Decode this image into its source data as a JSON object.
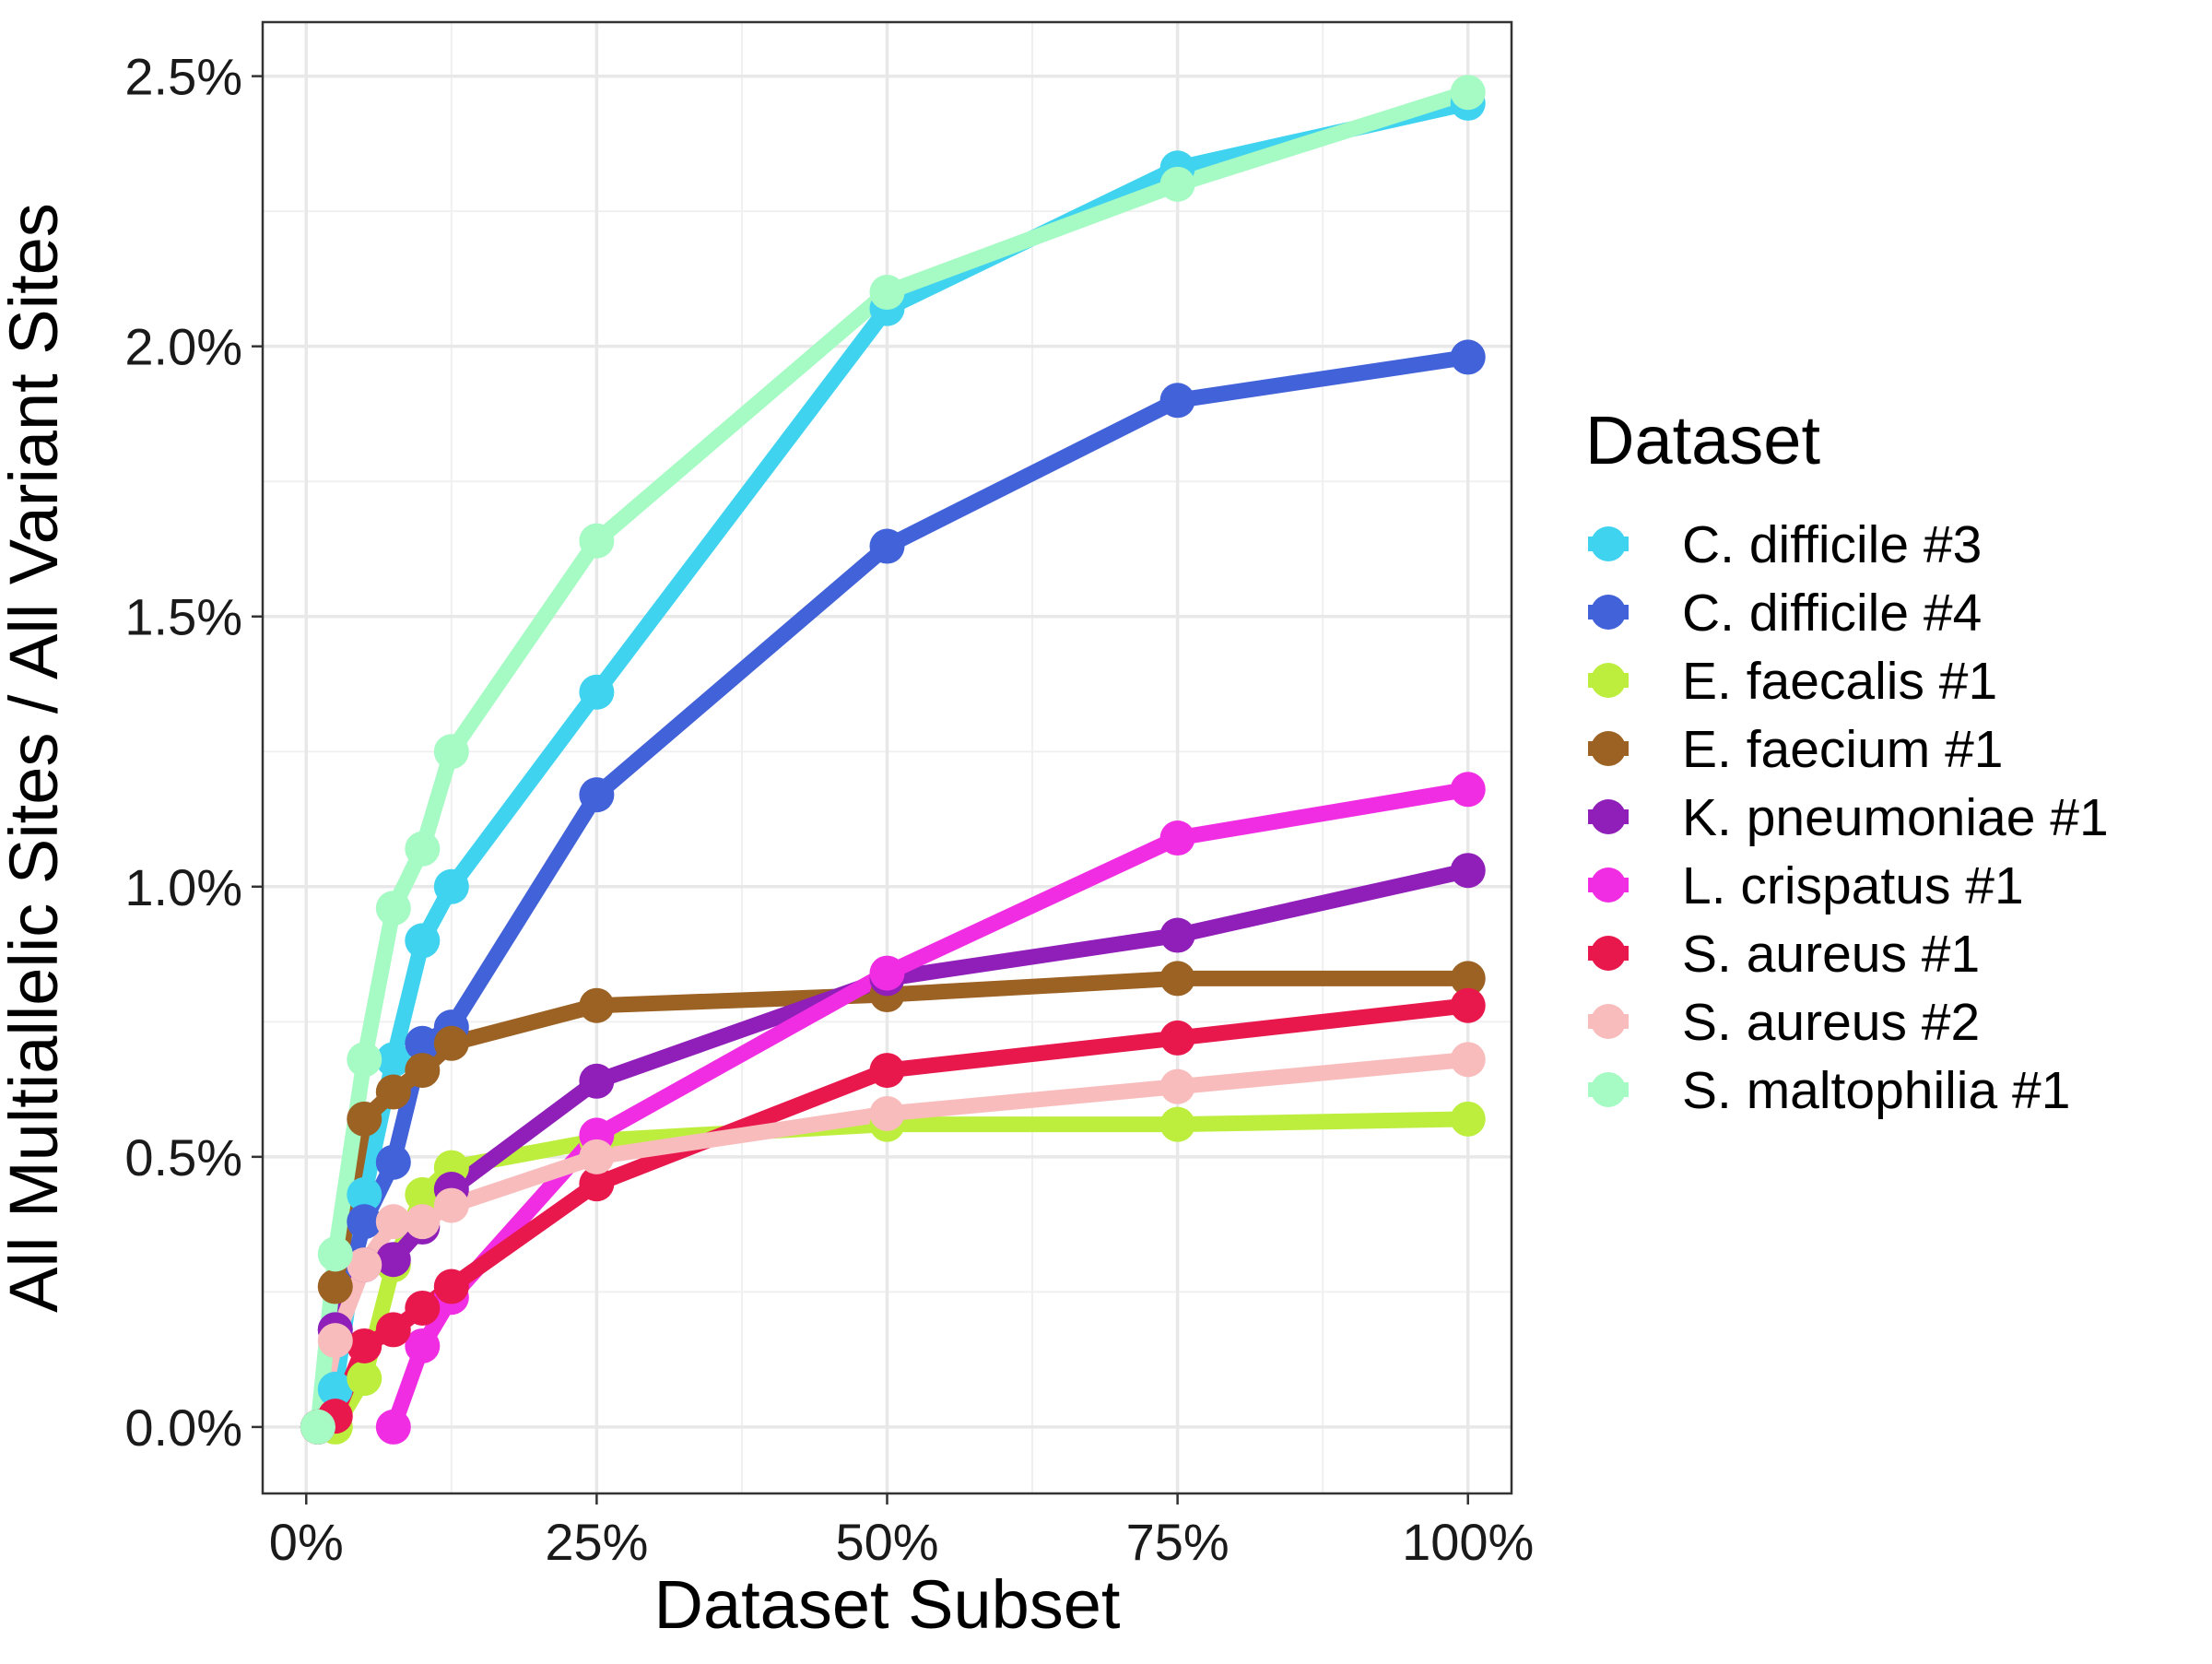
{
  "chart_data": {
    "type": "line",
    "xlabel": "Dataset Subset",
    "ylabel": "All Multiallelic Sites / All Variant Sites",
    "xlim": [
      -0.075,
      2.075
    ],
    "ylim": [
      -0.00123,
      0.026
    ],
    "x_ticks": [
      {
        "value": 0.0,
        "label": "0%"
      },
      {
        "value": 0.5,
        "label": "25%"
      },
      {
        "value": 1.0,
        "label": "50%"
      },
      {
        "value": 1.5,
        "label": "75%"
      },
      {
        "value": 2.0,
        "label": "100%"
      }
    ],
    "y_ticks": [
      {
        "value": 0.0,
        "label": "0.0%"
      },
      {
        "value": 0.005,
        "label": "0.5%"
      },
      {
        "value": 0.01,
        "label": "1.0%"
      },
      {
        "value": 0.015,
        "label": "1.5%"
      },
      {
        "value": 0.02,
        "label": "2.0%"
      },
      {
        "value": 0.025,
        "label": "2.5%"
      }
    ],
    "grid": true,
    "legend": {
      "title": "Dataset",
      "position": "right"
    },
    "series": [
      {
        "name": "C. difficile #3",
        "color": "#3fd3f0",
        "points": [
          [
            0.02,
            0.0
          ],
          [
            0.05,
            0.0007
          ],
          [
            0.1,
            0.0043
          ],
          [
            0.15,
            0.0068
          ],
          [
            0.2,
            0.009
          ],
          [
            0.25,
            0.01
          ],
          [
            0.5,
            0.0136
          ],
          [
            1.0,
            0.0207
          ],
          [
            1.5,
            0.0233
          ],
          [
            2.0,
            0.0245
          ]
        ]
      },
      {
        "name": "C. difficile #4",
        "color": "#4262d9",
        "points": [
          [
            0.02,
            0.0
          ],
          [
            0.05,
            0.0018
          ],
          [
            0.1,
            0.0038
          ],
          [
            0.15,
            0.0049
          ],
          [
            0.2,
            0.0071
          ],
          [
            0.25,
            0.0074
          ],
          [
            0.5,
            0.0117
          ],
          [
            1.0,
            0.0163
          ],
          [
            1.5,
            0.019
          ],
          [
            2.0,
            0.0198
          ]
        ]
      },
      {
        "name": "E. faecalis #1",
        "color": "#bdee3e",
        "points": [
          [
            0.02,
            0.0
          ],
          [
            0.05,
            0.0
          ],
          [
            0.1,
            0.0009
          ],
          [
            0.15,
            0.003
          ],
          [
            0.2,
            0.0043
          ],
          [
            0.25,
            0.0048
          ],
          [
            0.5,
            0.0053
          ],
          [
            1.0,
            0.0056
          ],
          [
            1.5,
            0.0056
          ],
          [
            2.0,
            0.0057
          ]
        ]
      },
      {
        "name": "E. faecium #1",
        "color": "#9b6224",
        "points": [
          [
            0.02,
            0.0
          ],
          [
            0.05,
            0.0026
          ],
          [
            0.1,
            0.0057
          ],
          [
            0.15,
            0.0062
          ],
          [
            0.2,
            0.0066
          ],
          [
            0.25,
            0.0071
          ],
          [
            0.5,
            0.0078
          ],
          [
            1.0,
            0.008
          ],
          [
            1.5,
            0.0083
          ],
          [
            2.0,
            0.0083
          ]
        ]
      },
      {
        "name": "K. pneumoniae #1",
        "color": "#8f1fb8",
        "points": [
          [
            0.02,
            0.0
          ],
          [
            0.05,
            0.0018
          ],
          [
            0.1,
            0.003
          ],
          [
            0.15,
            0.0031
          ],
          [
            0.2,
            0.0037
          ],
          [
            0.25,
            0.0044
          ],
          [
            0.5,
            0.0064
          ],
          [
            1.0,
            0.0083
          ],
          [
            1.5,
            0.0091
          ],
          [
            2.0,
            0.0103
          ]
        ]
      },
      {
        "name": "L. crispatus #1",
        "color": "#f02de3",
        "points": [
          [
            0.15,
            0.0
          ],
          [
            0.2,
            0.0015
          ],
          [
            0.25,
            0.0024
          ],
          [
            0.5,
            0.0054
          ],
          [
            1.0,
            0.0084
          ],
          [
            1.5,
            0.0109
          ],
          [
            2.0,
            0.0118
          ]
        ]
      },
      {
        "name": "S. aureus #1",
        "color": "#e8184d",
        "points": [
          [
            0.02,
            0.0
          ],
          [
            0.05,
            0.0002
          ],
          [
            0.1,
            0.0015
          ],
          [
            0.15,
            0.0018
          ],
          [
            0.2,
            0.0022
          ],
          [
            0.25,
            0.0026
          ],
          [
            0.5,
            0.0045
          ],
          [
            1.0,
            0.0066
          ],
          [
            1.5,
            0.0072
          ],
          [
            2.0,
            0.0078
          ]
        ]
      },
      {
        "name": "S. aureus #2",
        "color": "#f9bcbc",
        "points": [
          [
            0.02,
            0.0
          ],
          [
            0.05,
            0.0016
          ],
          [
            0.1,
            0.003
          ],
          [
            0.15,
            0.0038
          ],
          [
            0.2,
            0.0038
          ],
          [
            0.25,
            0.0041
          ],
          [
            0.5,
            0.005
          ],
          [
            1.0,
            0.0058
          ],
          [
            1.5,
            0.0063
          ],
          [
            2.0,
            0.0068
          ]
        ]
      },
      {
        "name": "S. maltophilia #1",
        "color": "#a6fac4",
        "points": [
          [
            0.02,
            0.0
          ],
          [
            0.05,
            0.0032
          ],
          [
            0.1,
            0.0068
          ],
          [
            0.15,
            0.0096
          ],
          [
            0.2,
            0.0107
          ],
          [
            0.25,
            0.0125
          ],
          [
            0.5,
            0.0164
          ],
          [
            1.0,
            0.021
          ],
          [
            1.5,
            0.023
          ],
          [
            2.0,
            0.0247
          ]
        ]
      }
    ]
  }
}
